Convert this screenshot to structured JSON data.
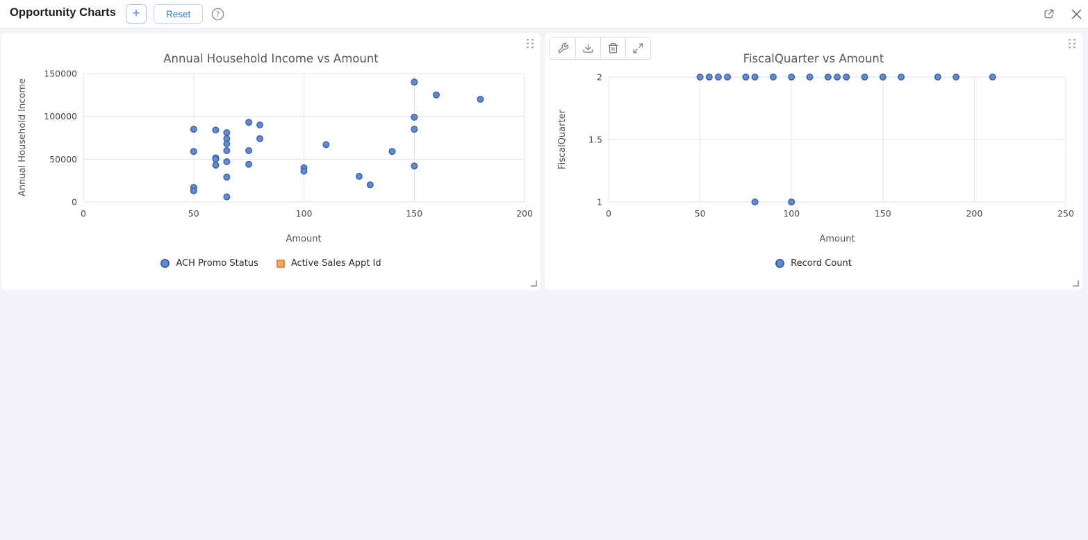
{
  "header": {
    "title": "Opportunity Charts",
    "add_button_label": "+",
    "reset_button_label": "Reset"
  },
  "icons": {
    "header": [
      "plus-icon",
      "question-circle-icon",
      "popout-icon",
      "close-icon"
    ],
    "chart_toolbar": [
      "wrench-icon",
      "download-icon",
      "trash-icon",
      "expand-icon"
    ],
    "card": [
      "drag-handle-icon",
      "resize-handle-icon"
    ]
  },
  "colors": {
    "accent_blue": "#2b7de1",
    "point_fill": "#5e8bd2",
    "point_stroke": "#3a61a8",
    "orange_fill": "#f8a55f",
    "orange_stroke": "#de873e",
    "grid_line": "#dde3ed",
    "tick_text": "#45484d",
    "title_text": "#54565b",
    "legend_text": "#2b2d31"
  },
  "chart_data": [
    {
      "type": "scatter",
      "title": "Annual Household Income vs Amount",
      "xlabel": "Amount",
      "ylabel": "Annual Household Income",
      "xlim": [
        0,
        200
      ],
      "ylim": [
        0,
        150000
      ],
      "xticks": [
        0,
        50,
        100,
        150,
        200
      ],
      "yticks": [
        0,
        50000,
        100000,
        150000
      ],
      "grid": true,
      "legend_position": "bottom",
      "legend": [
        {
          "label": "ACH Promo Status",
          "marker": "circle",
          "fill": "#5e8bd2",
          "stroke": "#3a61a8"
        },
        {
          "label": "Active Sales Appt Id",
          "marker": "square",
          "fill": "#f8a55f",
          "stroke": "#de873e"
        }
      ],
      "series": [
        {
          "name": "ACH Promo Status",
          "marker": "circle",
          "points": [
            [
              50,
              85000
            ],
            [
              50,
              59000
            ],
            [
              50,
              17000
            ],
            [
              50,
              13000
            ],
            [
              60,
              84000
            ],
            [
              60,
              51500
            ],
            [
              60,
              50000
            ],
            [
              60,
              43000
            ],
            [
              65,
              81000
            ],
            [
              65,
              74000
            ],
            [
              65,
              68000
            ],
            [
              65,
              60000
            ],
            [
              65,
              47000
            ],
            [
              65,
              29000
            ],
            [
              65,
              6000
            ],
            [
              75,
              93000
            ],
            [
              75,
              60000
            ],
            [
              75,
              44000
            ],
            [
              80,
              90000
            ],
            [
              80,
              74000
            ],
            [
              100,
              40000
            ],
            [
              100,
              36000
            ],
            [
              110,
              67000
            ],
            [
              125,
              30000
            ],
            [
              130,
              20000
            ],
            [
              140,
              59000
            ],
            [
              150,
              140000
            ],
            [
              150,
              99000
            ],
            [
              150,
              85000
            ],
            [
              150,
              42000
            ],
            [
              160,
              125000
            ],
            [
              180,
              120000
            ]
          ]
        },
        {
          "name": "Active Sales Appt Id",
          "marker": "square",
          "points": []
        }
      ]
    },
    {
      "type": "scatter",
      "title": "FiscalQuarter vs Amount",
      "xlabel": "Amount",
      "ylabel": "FiscalQuarter",
      "xlim": [
        0,
        250
      ],
      "ylim": [
        1,
        2
      ],
      "xticks": [
        0,
        50,
        100,
        150,
        200,
        250
      ],
      "yticks": [
        1,
        1.5,
        2
      ],
      "grid": true,
      "legend_position": "bottom",
      "legend": [
        {
          "label": "Record Count",
          "marker": "circle",
          "fill": "#5e8bd2",
          "stroke": "#3a61a8"
        }
      ],
      "series": [
        {
          "name": "Record Count",
          "marker": "circle",
          "points": [
            [
              50,
              2
            ],
            [
              55,
              2
            ],
            [
              60,
              2
            ],
            [
              65,
              2
            ],
            [
              75,
              2
            ],
            [
              80,
              2
            ],
            [
              90,
              2
            ],
            [
              100,
              2
            ],
            [
              110,
              2
            ],
            [
              120,
              2
            ],
            [
              125,
              2
            ],
            [
              130,
              2
            ],
            [
              140,
              2
            ],
            [
              150,
              2
            ],
            [
              160,
              2
            ],
            [
              180,
              2
            ],
            [
              190,
              2
            ],
            [
              210,
              2
            ],
            [
              80,
              1
            ],
            [
              100,
              1
            ]
          ]
        }
      ]
    }
  ]
}
